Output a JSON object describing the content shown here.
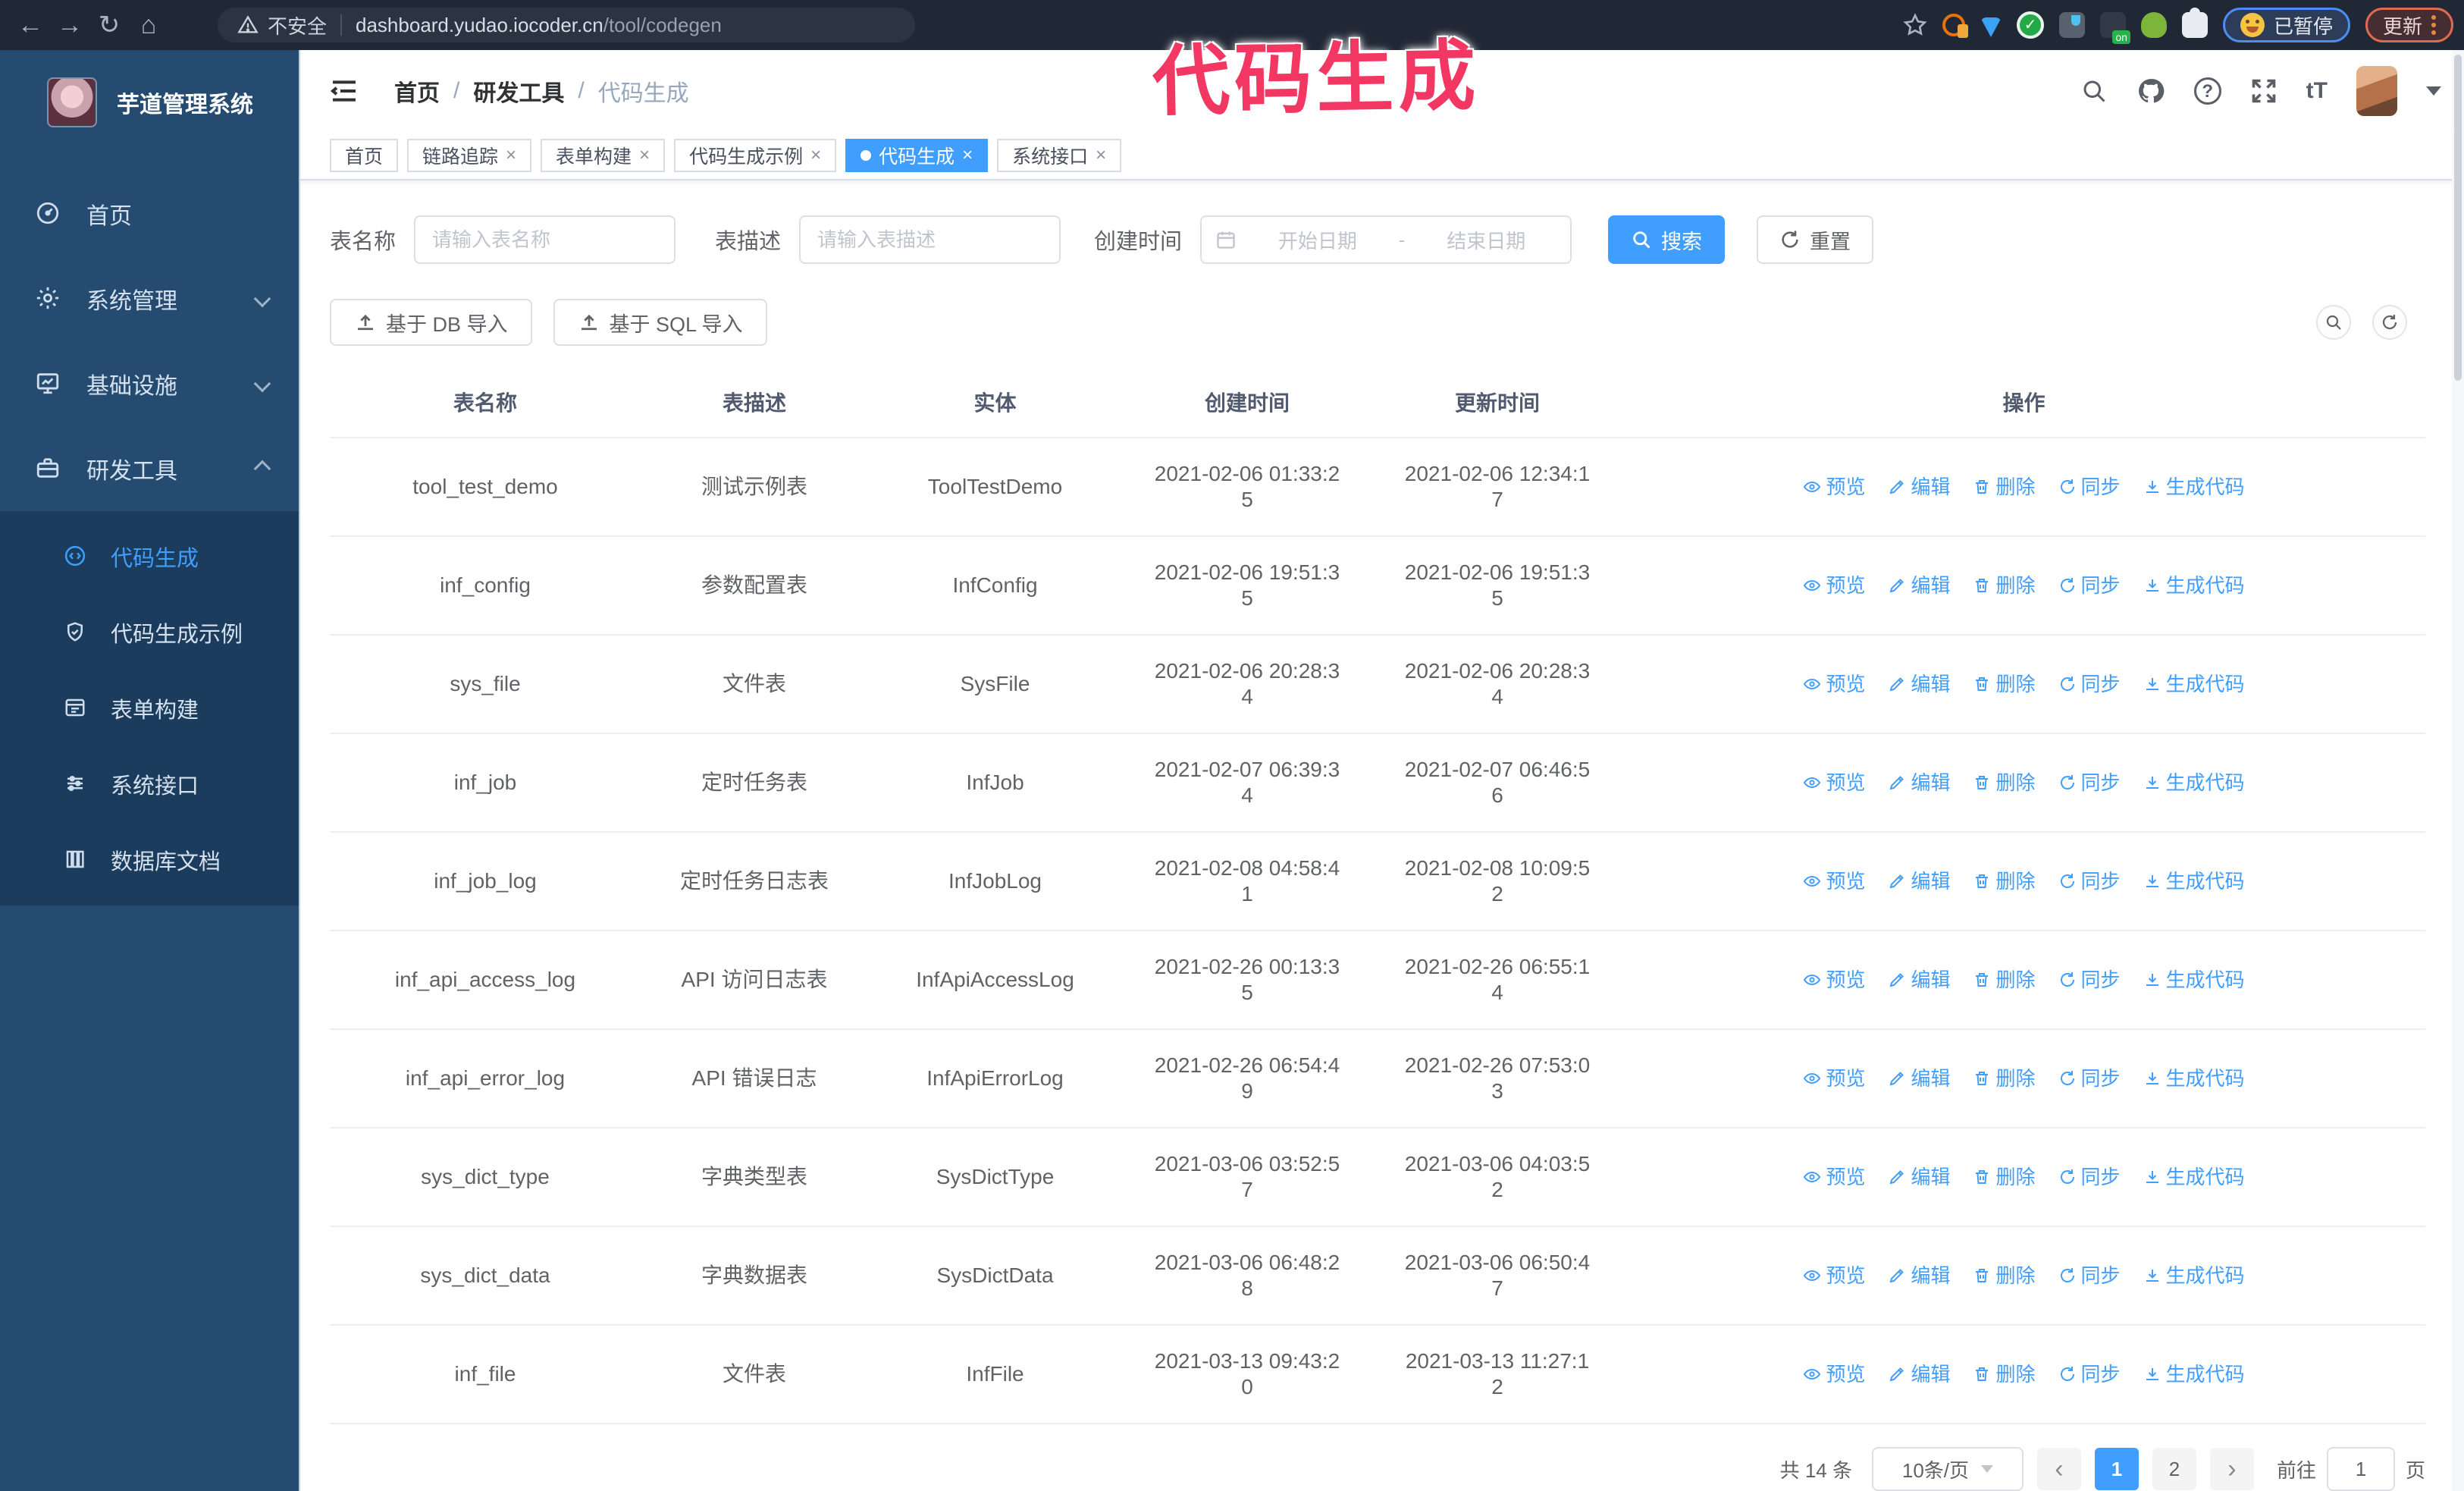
{
  "browser": {
    "security_label": "不安全",
    "url_host": "dashboard.yudao.iocoder.cn",
    "url_path": "/tool/codegen",
    "paused_badge": "已暂停",
    "update_badge": "更新"
  },
  "annotation": {
    "text": "代码生成",
    "color": "#f23762"
  },
  "sidebar": {
    "title": "芋道管理系统",
    "menu": [
      {
        "label": "首页",
        "icon": "dashboard-icon",
        "chevron": ""
      },
      {
        "label": "系统管理",
        "icon": "gear-icon",
        "chevron": "down"
      },
      {
        "label": "基础设施",
        "icon": "monitor-icon",
        "chevron": "down"
      },
      {
        "label": "研发工具",
        "icon": "toolbox-icon",
        "chevron": "up"
      }
    ],
    "submenu": [
      {
        "label": "代码生成",
        "icon": "code-icon",
        "active": true
      },
      {
        "label": "代码生成示例",
        "icon": "shield-check-icon",
        "active": false
      },
      {
        "label": "表单构建",
        "icon": "form-icon",
        "active": false
      },
      {
        "label": "系统接口",
        "icon": "sliders-icon",
        "active": false
      },
      {
        "label": "数据库文档",
        "icon": "columns-icon",
        "active": false
      }
    ]
  },
  "header": {
    "breadcrumb": [
      "首页",
      "研发工具",
      "代码生成"
    ],
    "separator": "/",
    "font_icon_label": "tT",
    "question_label": "?"
  },
  "tabs": [
    {
      "label": "首页",
      "closable": false,
      "active": false
    },
    {
      "label": "链路追踪",
      "closable": true,
      "active": false
    },
    {
      "label": "表单构建",
      "closable": true,
      "active": false
    },
    {
      "label": "代码生成示例",
      "closable": true,
      "active": false
    },
    {
      "label": "代码生成",
      "closable": true,
      "active": true
    },
    {
      "label": "系统接口",
      "closable": true,
      "active": false
    }
  ],
  "search_form": {
    "table_name_label": "表名称",
    "table_name_placeholder": "请输入表名称",
    "table_desc_label": "表描述",
    "table_desc_placeholder": "请输入表描述",
    "create_time_label": "创建时间",
    "start_placeholder": "开始日期",
    "range_separator": "-",
    "end_placeholder": "结束日期",
    "search_label": "搜索",
    "reset_label": "重置"
  },
  "toolbar": {
    "import_db_label": "基于 DB 导入",
    "import_sql_label": "基于 SQL 导入"
  },
  "table": {
    "columns": [
      "表名称",
      "表描述",
      "实体",
      "创建时间",
      "更新时间",
      "操作"
    ],
    "actions": [
      {
        "label": "预览",
        "icon": "eye-icon"
      },
      {
        "label": "编辑",
        "icon": "edit-icon"
      },
      {
        "label": "删除",
        "icon": "delete-icon"
      },
      {
        "label": "同步",
        "icon": "sync-icon"
      },
      {
        "label": "生成代码",
        "icon": "download-icon"
      }
    ],
    "rows": [
      {
        "name": "tool_test_demo",
        "desc": "测试示例表",
        "entity": "ToolTestDemo",
        "created": "2021-02-06 01:33:25",
        "updated": "2021-02-06 12:34:17"
      },
      {
        "name": "inf_config",
        "desc": "参数配置表",
        "entity": "InfConfig",
        "created": "2021-02-06 19:51:35",
        "updated": "2021-02-06 19:51:35"
      },
      {
        "name": "sys_file",
        "desc": "文件表",
        "entity": "SysFile",
        "created": "2021-02-06 20:28:34",
        "updated": "2021-02-06 20:28:34"
      },
      {
        "name": "inf_job",
        "desc": "定时任务表",
        "entity": "InfJob",
        "created": "2021-02-07 06:39:34",
        "updated": "2021-02-07 06:46:56"
      },
      {
        "name": "inf_job_log",
        "desc": "定时任务日志表",
        "entity": "InfJobLog",
        "created": "2021-02-08 04:58:41",
        "updated": "2021-02-08 10:09:52"
      },
      {
        "name": "inf_api_access_log",
        "desc": "API 访问日志表",
        "entity": "InfApiAccessLog",
        "created": "2021-02-26 00:13:35",
        "updated": "2021-02-26 06:55:14"
      },
      {
        "name": "inf_api_error_log",
        "desc": "API 错误日志",
        "entity": "InfApiErrorLog",
        "created": "2021-02-26 06:54:49",
        "updated": "2021-02-26 07:53:03"
      },
      {
        "name": "sys_dict_type",
        "desc": "字典类型表",
        "entity": "SysDictType",
        "created": "2021-03-06 03:52:57",
        "updated": "2021-03-06 04:03:52"
      },
      {
        "name": "sys_dict_data",
        "desc": "字典数据表",
        "entity": "SysDictData",
        "created": "2021-03-06 06:48:28",
        "updated": "2021-03-06 06:50:47"
      },
      {
        "name": "inf_file",
        "desc": "文件表",
        "entity": "InfFile",
        "created": "2021-03-13 09:43:20",
        "updated": "2021-03-13 11:27:12"
      }
    ]
  },
  "pagination": {
    "total_text": "共 14 条",
    "page_size": "10条/页",
    "pages": [
      "1",
      "2"
    ],
    "active_page": "1",
    "prev_label": "‹",
    "next_label": "›",
    "goto_label": "前往",
    "goto_value": "1",
    "goto_suffix": "页"
  },
  "colors": {
    "accent": "#409eff",
    "sidebar_bg": "#254b70",
    "submenu_bg": "#1b3c5c",
    "annotation": "#f23762"
  }
}
